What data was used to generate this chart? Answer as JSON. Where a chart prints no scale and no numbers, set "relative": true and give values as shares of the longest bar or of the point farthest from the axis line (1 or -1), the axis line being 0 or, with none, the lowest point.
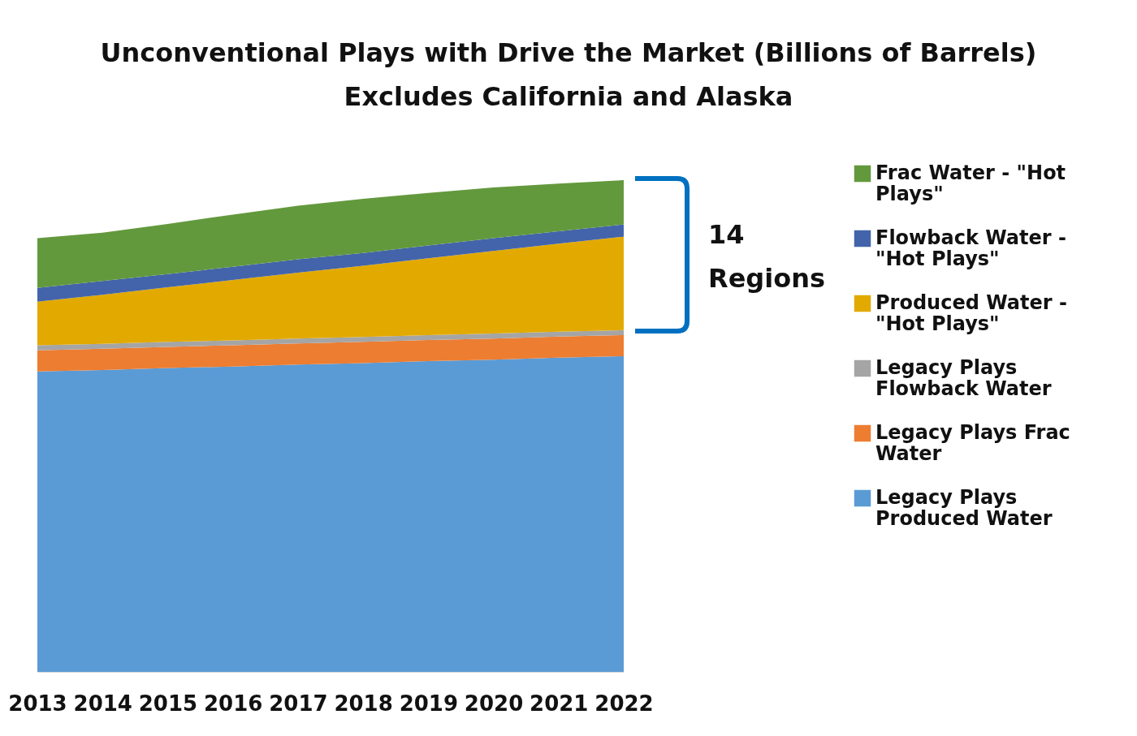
{
  "chart_data": {
    "type": "area",
    "title": "Unconventional Plays with Drive the Market (Billions of Barrels)",
    "subtitle": "Excludes California and Alaska",
    "relative": true,
    "stacked": true,
    "legend": "right",
    "annotations": [
      "14 Regions"
    ],
    "categories": [
      "2013",
      "2014",
      "2015",
      "2016",
      "2017",
      "2018",
      "2019",
      "2020",
      "2021",
      "2022"
    ],
    "series": [
      {
        "name": "Legacy Plays Produced Water",
        "color": "#5b9bd5",
        "values": [
          0.611,
          0.614,
          0.618,
          0.621,
          0.625,
          0.628,
          0.632,
          0.635,
          0.639,
          0.642
        ]
      },
      {
        "name": "Legacy Plays Frac Water",
        "color": "#ed7d31",
        "values": [
          0.043,
          0.043,
          0.043,
          0.043,
          0.043,
          0.043,
          0.043,
          0.043,
          0.043,
          0.043
        ]
      },
      {
        "name": "Legacy Plays Flowback Water",
        "color": "#a5a5a5",
        "values": [
          0.01,
          0.01,
          0.01,
          0.01,
          0.01,
          0.01,
          0.01,
          0.01,
          0.01,
          0.01
        ]
      },
      {
        "name": "Produced Water - \"Hot Plays\"",
        "color": "#e2aa00",
        "values": [
          0.089,
          0.1,
          0.111,
          0.123,
          0.134,
          0.145,
          0.156,
          0.168,
          0.179,
          0.19
        ]
      },
      {
        "name": "Flowback Water - \"Hot Plays\"",
        "color": "#4364aa",
        "values": [
          0.028,
          0.028,
          0.027,
          0.027,
          0.027,
          0.026,
          0.026,
          0.026,
          0.025,
          0.025
        ]
      },
      {
        "name": "Frac Water - \"Hot Plays\"",
        "color": "#63993d",
        "values": [
          0.101,
          0.098,
          0.102,
          0.106,
          0.109,
          0.11,
          0.107,
          0.103,
          0.097,
          0.09
        ]
      }
    ]
  }
}
